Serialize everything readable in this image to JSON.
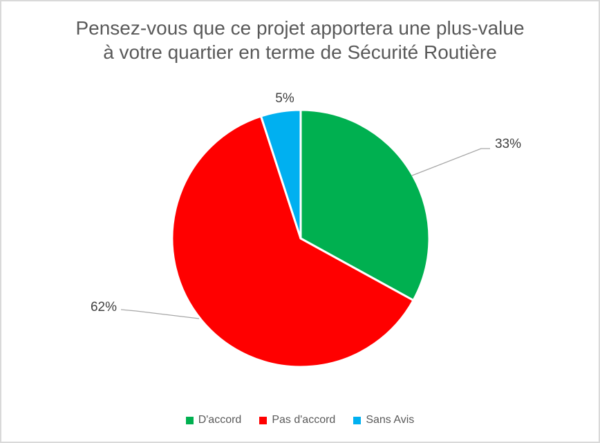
{
  "frame": {
    "background": "#ffffff",
    "border_color": "#d9d9d9"
  },
  "title": {
    "text": "Pensez-vous que ce projet apportera une plus-value à votre quartier en terme de Sécurité Routière",
    "lines": [
      "Pensez-vous que ce projet apportera une plus-value",
      "à votre quartier en terme de Sécurité Routière"
    ],
    "color": "#595959"
  },
  "chart_data": {
    "type": "pie",
    "title": "Pensez-vous que ce projet apportera une plus-value à votre quartier en terme de Sécurité Routière",
    "categories": [
      "D'accord",
      "Pas d'accord",
      "Sans Avis"
    ],
    "values": [
      33,
      62,
      5
    ],
    "unit": "percent",
    "slice_labels": [
      "33%",
      "62%",
      "5%"
    ],
    "colors": [
      "#00b050",
      "#ff0000",
      "#00b0f0"
    ],
    "start_angle_deg": 0,
    "direction": "clockwise",
    "slice_border_color": "#ffffff",
    "legend_position": "bottom",
    "legend": [
      {
        "label": "D'accord",
        "color": "#00b050"
      },
      {
        "label": "Pas d'accord",
        "color": "#ff0000"
      },
      {
        "label": "Sans Avis",
        "color": "#00b0f0"
      }
    ]
  },
  "styles": {
    "label_color": "#404040",
    "leader_line_color": "#a6a6a6",
    "legend_text_color": "#595959"
  }
}
